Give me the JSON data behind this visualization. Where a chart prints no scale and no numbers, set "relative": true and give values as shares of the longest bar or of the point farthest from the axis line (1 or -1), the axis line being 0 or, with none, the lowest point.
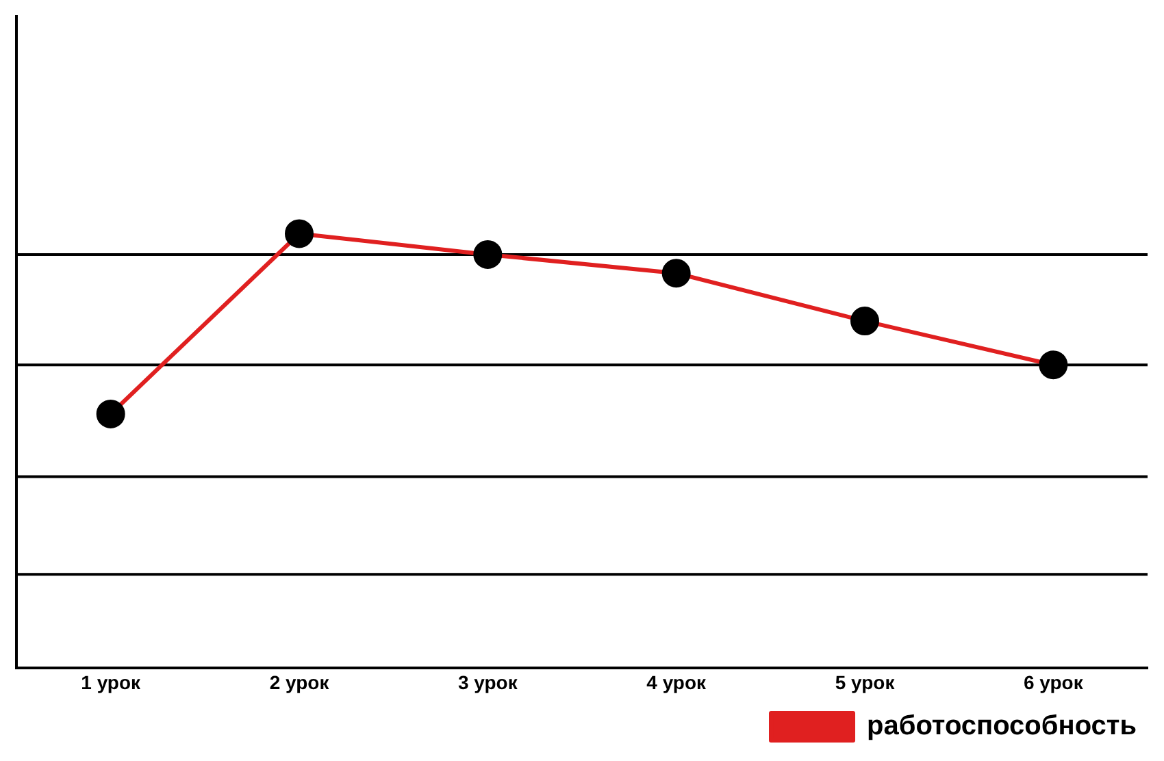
{
  "chart_data": {
    "type": "line",
    "relative": true,
    "categories": [
      "1 урок",
      "2 урок",
      "3 урок",
      "4 урок",
      "5 урок",
      "6 урок"
    ],
    "series": [
      {
        "name": "работоспособность",
        "color": "#e02020",
        "values": [
          0.585,
          1,
          0.952,
          0.909,
          0.799,
          0.698
        ]
      }
    ],
    "ref_lines": [
      {
        "axis": "y",
        "value": 0.216,
        "color": "#000000"
      },
      {
        "axis": "y",
        "value": 0.441,
        "color": "#000000"
      },
      {
        "axis": "y",
        "value": 0.698,
        "color": "#000000"
      },
      {
        "axis": "y",
        "value": 0.952,
        "color": "#000000"
      }
    ],
    "marker": "circle",
    "line_style": "solid",
    "legend": "bottom right"
  }
}
